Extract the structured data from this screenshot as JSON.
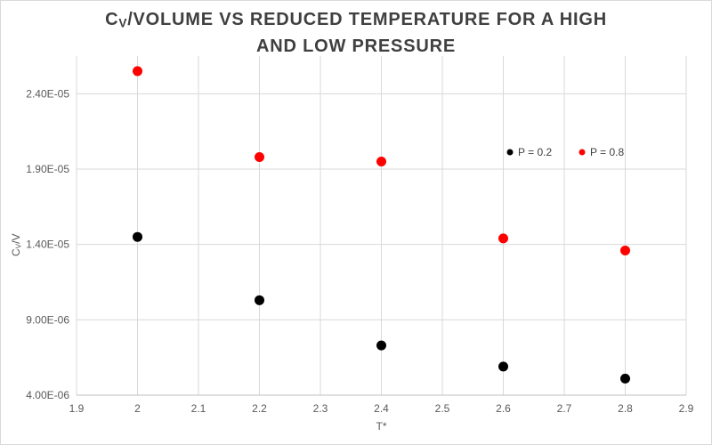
{
  "title": {
    "prefix": "C",
    "sub": "V",
    "rest": "/VOLUME VS REDUCED TEMPERATURE FOR A HIGH",
    "line2": "AND LOW PRESSURE"
  },
  "axes": {
    "x_title": "T*",
    "y_title_prefix": "C",
    "y_title_sub": "V",
    "y_title_rest": "/V"
  },
  "colors": {
    "gridline": "#d9d9d9",
    "axis_line": "#bfbfbf",
    "tick_text": "#595959",
    "legend_text": "#404040",
    "series_low": "#000000",
    "series_high": "#ff0000"
  },
  "chart_data": {
    "type": "scatter",
    "title": "CV/VOLUME VS REDUCED TEMPERATURE FOR A HIGH AND LOW PRESSURE",
    "xlabel": "T*",
    "ylabel": "CV/V",
    "xlim": [
      1.9,
      2.9
    ],
    "ylim": [
      4e-06,
      2.65e-05
    ],
    "grid": true,
    "legend_position": "inside-right",
    "x_ticks": [
      "1.9",
      "2",
      "2.1",
      "2.2",
      "2.3",
      "2.4",
      "2.5",
      "2.6",
      "2.7",
      "2.8",
      "2.9"
    ],
    "y_ticks": [
      {
        "value": 4e-06,
        "label": "4.00E-06"
      },
      {
        "value": 9e-06,
        "label": "9.00E-06"
      },
      {
        "value": 1.4e-05,
        "label": "1.40E-05"
      },
      {
        "value": 1.9e-05,
        "label": "1.90E-05"
      },
      {
        "value": 2.4e-05,
        "label": "2.40E-05"
      }
    ],
    "series": [
      {
        "name": "P = 0.2",
        "color": "#000000",
        "points": [
          {
            "x": 2.0,
            "y": 1.45e-05
          },
          {
            "x": 2.2,
            "y": 1.03e-05
          },
          {
            "x": 2.4,
            "y": 7.3e-06
          },
          {
            "x": 2.6,
            "y": 5.9e-06
          },
          {
            "x": 2.8,
            "y": 5.1e-06
          }
        ]
      },
      {
        "name": "P = 0.8",
        "color": "#ff0000",
        "points": [
          {
            "x": 2.0,
            "y": 2.55e-05
          },
          {
            "x": 2.2,
            "y": 1.98e-05
          },
          {
            "x": 2.4,
            "y": 1.95e-05
          },
          {
            "x": 2.6,
            "y": 1.44e-05
          },
          {
            "x": 2.8,
            "y": 1.36e-05
          }
        ]
      }
    ]
  }
}
